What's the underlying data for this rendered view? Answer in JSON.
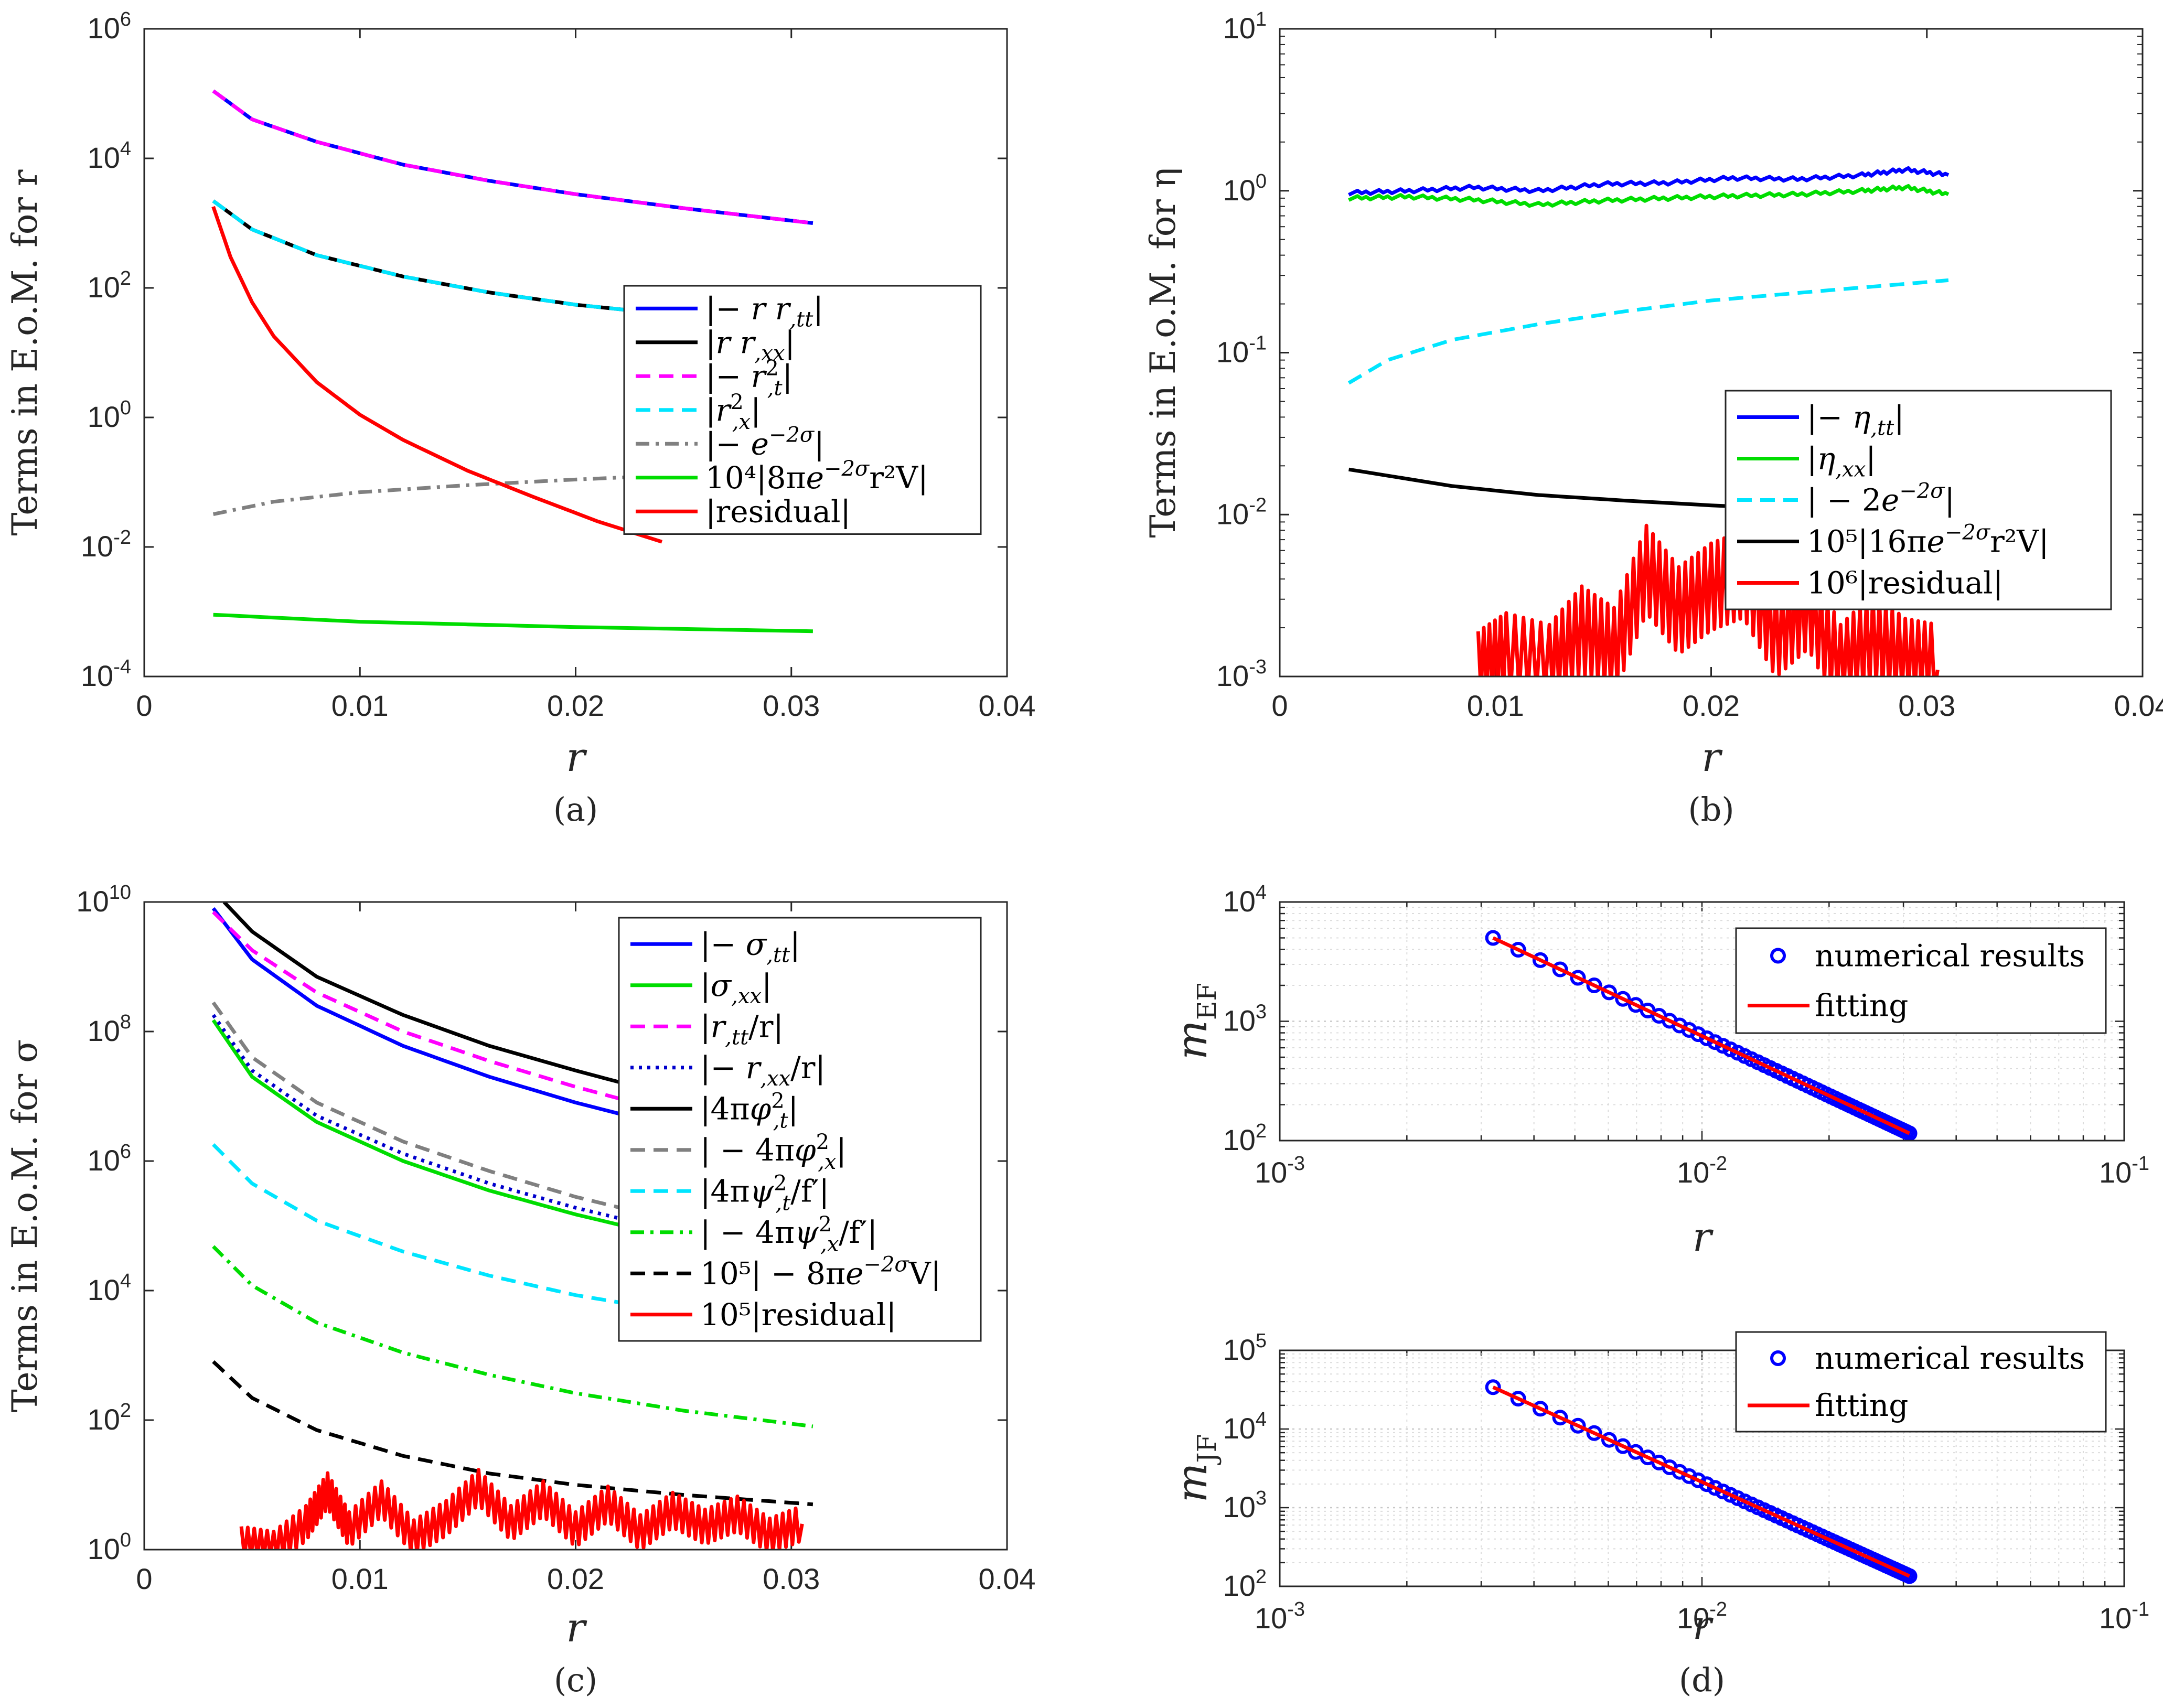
{
  "chart_data": [
    {
      "id": "a",
      "type": "line",
      "caption": "(a)",
      "ylabel": "Terms in E.o.M. for r",
      "xlabel": "r",
      "yscale": "log",
      "xlim": [
        0,
        0.04
      ],
      "ylim": [
        0.0001,
        1000000
      ],
      "xticks": [
        "0",
        "0.01",
        "0.02",
        "0.03",
        "0.04"
      ],
      "yticks": [
        {
          "base": "10",
          "exp": "-4"
        },
        {
          "base": "10",
          "exp": "-2"
        },
        {
          "base": "10",
          "exp": "0"
        },
        {
          "base": "10",
          "exp": "2"
        },
        {
          "base": "10",
          "exp": "4"
        },
        {
          "base": "10",
          "exp": "6"
        }
      ],
      "series": [
        {
          "name": "|−rr,tt|",
          "color": "#0000ff",
          "dash": "solid",
          "x": [
            0.0032,
            0.005,
            0.008,
            0.012,
            0.016,
            0.02,
            0.025,
            0.031
          ],
          "y": [
            110000,
            40000,
            18000,
            8000,
            4500,
            2800,
            1700,
            1000
          ]
        },
        {
          "name": "|rr,xx|",
          "color": "#000000",
          "dash": "solid",
          "x": [
            0.0032,
            0.005,
            0.008,
            0.012,
            0.016,
            0.02,
            0.025,
            0.031
          ],
          "y": [
            2200,
            800,
            320,
            150,
            85,
            55,
            37,
            25
          ]
        },
        {
          "name": "|−r,t²|",
          "color": "#ff00ff",
          "dash": "dash",
          "x": [
            0.0032,
            0.005,
            0.008,
            0.012,
            0.016,
            0.02,
            0.025,
            0.031
          ],
          "y": [
            110000,
            40000,
            18000,
            8000,
            4500,
            2800,
            1700,
            1000
          ]
        },
        {
          "name": "|r,x²|",
          "color": "#00e5ff",
          "dash": "dash",
          "x": [
            0.0032,
            0.005,
            0.008,
            0.012,
            0.016,
            0.02,
            0.025,
            0.031
          ],
          "y": [
            2200,
            800,
            320,
            150,
            85,
            55,
            37,
            25
          ]
        },
        {
          "name": "|−e^(−2σ)|",
          "color": "#808080",
          "dash": "dashdot",
          "x": [
            0.0032,
            0.006,
            0.01,
            0.015,
            0.02,
            0.025,
            0.031
          ],
          "y": [
            0.032,
            0.05,
            0.07,
            0.09,
            0.11,
            0.13,
            0.15
          ]
        },
        {
          "name": "10⁴|8πe^(−2σ)r²V|",
          "color": "#00dd00",
          "dash": "solid",
          "x": [
            0.0032,
            0.01,
            0.02,
            0.031
          ],
          "y": [
            0.0009,
            0.0007,
            0.00058,
            0.0005
          ]
        },
        {
          "name": "|residual|",
          "color": "#ff0000",
          "dash": "solid",
          "x": [
            0.0032,
            0.004,
            0.005,
            0.006,
            0.008,
            0.01,
            0.012,
            0.015,
            0.018,
            0.021,
            0.024
          ],
          "y": [
            1800,
            300,
            60,
            18,
            3.5,
            1.1,
            0.45,
            0.15,
            0.06,
            0.025,
            0.012
          ]
        }
      ],
      "legend": {
        "loc": "right",
        "entries": [
          {
            "pre": "|",
            "math": "− r r",
            "sub": ",tt",
            "sup": "",
            "post": "|"
          },
          {
            "pre": "|",
            "math": "r r",
            "sub": ",xx",
            "sup": "",
            "post": "|"
          },
          {
            "pre": "|",
            "math": "− r",
            "sub": ",t",
            "sup": "2",
            "post": "|"
          },
          {
            "pre": "|",
            "math": "r",
            "sub": ",x",
            "sup": "2",
            "post": "|"
          },
          {
            "pre": "|",
            "math": "− e",
            "sub": "",
            "sup": "−2σ",
            "post": "|"
          },
          {
            "pre": "10⁴|8π",
            "math": "e",
            "sub": "",
            "sup": "−2σ",
            "post": "r²V|"
          },
          {
            "pre": "|residual|",
            "math": "",
            "sub": "",
            "sup": "",
            "post": ""
          }
        ]
      }
    },
    {
      "id": "b",
      "type": "line",
      "caption": "(b)",
      "ylabel": "Terms in E.o.M. for η",
      "xlabel": "r",
      "yscale": "log",
      "xlim": [
        0,
        0.04
      ],
      "ylim": [
        0.001,
        10
      ],
      "xticks": [
        "0",
        "0.01",
        "0.02",
        "0.03",
        "0.04"
      ],
      "yticks": [
        {
          "base": "10",
          "exp": "-3"
        },
        {
          "base": "10",
          "exp": "-2"
        },
        {
          "base": "10",
          "exp": "-1"
        },
        {
          "base": "10",
          "exp": "0"
        },
        {
          "base": "10",
          "exp": "1"
        }
      ],
      "series": [
        {
          "name": "|−η,tt|",
          "color": "#0000ff",
          "dash": "solid",
          "x": [
            0.0032,
            0.006,
            0.009,
            0.012,
            0.015,
            0.018,
            0.021,
            0.024,
            0.027,
            0.029,
            0.031
          ],
          "y": [
            0.97,
            1.0,
            1.05,
            1.0,
            1.1,
            1.12,
            1.2,
            1.18,
            1.25,
            1.35,
            1.25
          ]
        },
        {
          "name": "|η,xx|",
          "color": "#00dd00",
          "dash": "solid",
          "x": [
            0.0032,
            0.006,
            0.009,
            0.012,
            0.015,
            0.018,
            0.021,
            0.024,
            0.027,
            0.029,
            0.031
          ],
          "y": [
            0.9,
            0.92,
            0.88,
            0.82,
            0.87,
            0.9,
            0.93,
            0.95,
            1.0,
            1.05,
            0.95
          ]
        },
        {
          "name": "|−2e^(−2σ)|",
          "color": "#00e5ff",
          "dash": "dash",
          "x": [
            0.0032,
            0.005,
            0.008,
            0.012,
            0.016,
            0.02,
            0.025,
            0.031
          ],
          "y": [
            0.065,
            0.09,
            0.12,
            0.15,
            0.18,
            0.21,
            0.24,
            0.28
          ]
        },
        {
          "name": "10⁵|16πe^(−2σ)r²V|",
          "color": "#000000",
          "dash": "solid",
          "x": [
            0.0032,
            0.008,
            0.012,
            0.016,
            0.02,
            0.025,
            0.031
          ],
          "y": [
            0.019,
            0.015,
            0.0132,
            0.0122,
            0.0114,
            0.0106,
            0.01
          ]
        },
        {
          "name": "10⁶|residual|",
          "color": "#ff0000",
          "dash": "solid",
          "x": [
            0.0092,
            0.0105,
            0.0125,
            0.014,
            0.0155,
            0.017,
            0.0185,
            0.02,
            0.0215,
            0.023,
            0.0245,
            0.026,
            0.0275,
            0.029,
            0.0305
          ],
          "y": [
            0.001,
            0.0013,
            0.0011,
            0.0019,
            0.0014,
            0.0045,
            0.0025,
            0.0035,
            0.0042,
            0.0018,
            0.0027,
            0.0011,
            0.0017,
            0.0012,
            0.0011
          ]
        }
      ],
      "legend": {
        "loc": "right",
        "entries": [
          {
            "pre": "|",
            "math": "− η",
            "sub": ",tt",
            "sup": "",
            "post": "|"
          },
          {
            "pre": "|",
            "math": "η",
            "sub": ",xx",
            "sup": "",
            "post": "|"
          },
          {
            "pre": "| − 2",
            "math": "e",
            "sub": "",
            "sup": "−2σ",
            "post": "|"
          },
          {
            "pre": "10⁵|16π",
            "math": "e",
            "sub": "",
            "sup": "−2σ",
            "post": "r²V|"
          },
          {
            "pre": "10⁶|residual|",
            "math": "",
            "sub": "",
            "sup": "",
            "post": ""
          }
        ]
      }
    },
    {
      "id": "c",
      "type": "line",
      "caption": "(c)",
      "ylabel": "Terms in E.o.M. for σ",
      "xlabel": "r",
      "yscale": "log",
      "xlim": [
        0,
        0.04
      ],
      "ylim": [
        1,
        10000000000
      ],
      "xticks": [
        "0",
        "0.01",
        "0.02",
        "0.03",
        "0.04"
      ],
      "yticks": [
        {
          "base": "10",
          "exp": "0"
        },
        {
          "base": "10",
          "exp": "2"
        },
        {
          "base": "10",
          "exp": "4"
        },
        {
          "base": "10",
          "exp": "6"
        },
        {
          "base": "10",
          "exp": "8"
        },
        {
          "base": "10",
          "exp": "10"
        }
      ],
      "series": [
        {
          "name": "|−σ,tt|",
          "color": "#0000ff",
          "dash": "solid",
          "x": [
            0.0032,
            0.005,
            0.008,
            0.012,
            0.016,
            0.02,
            0.025,
            0.031
          ],
          "y": [
            8000000000,
            1300000000,
            250000000,
            60000000,
            20000000,
            8000000,
            3000000,
            1100000
          ]
        },
        {
          "name": "|σ,xx|",
          "color": "#00dd00",
          "dash": "solid",
          "x": [
            0.0032,
            0.005,
            0.008,
            0.012,
            0.016,
            0.02,
            0.025,
            0.031
          ],
          "y": [
            150000000,
            20000000,
            4000000,
            1000000,
            350000,
            150000,
            60000,
            25000
          ]
        },
        {
          "name": "|r,tt/r|",
          "color": "#ff00ff",
          "dash": "dash",
          "x": [
            0.0032,
            0.005,
            0.008,
            0.012,
            0.016,
            0.02,
            0.025,
            0.031
          ],
          "y": [
            7000000000,
            1800000000,
            400000000,
            100000000,
            35000000,
            14000000,
            5000000,
            2000000
          ]
        },
        {
          "name": "|−r,xx/r|",
          "color": "#0000cc",
          "dash": "dot",
          "x": [
            0.0032,
            0.005,
            0.008,
            0.012,
            0.016,
            0.02,
            0.025,
            0.031
          ],
          "y": [
            180000000,
            25000000,
            5000000,
            1300000,
            450000,
            190000,
            75000,
            30000
          ]
        },
        {
          "name": "|4πφ,t²|",
          "color": "#000000",
          "dash": "solid",
          "x": [
            0.0037,
            0.005,
            0.008,
            0.012,
            0.016,
            0.02,
            0.025,
            0.031
          ],
          "y": [
            10000000000,
            3500000000,
            700000000,
            180000000,
            60000000,
            25000000,
            9000000,
            3500000
          ]
        },
        {
          "name": "|−4πφ,x²|",
          "color": "#808080",
          "dash": "dash",
          "x": [
            0.0032,
            0.005,
            0.008,
            0.012,
            0.016,
            0.02,
            0.025,
            0.031
          ],
          "y": [
            280000000,
            40000000,
            8000000,
            2000000,
            700000,
            280000,
            110000,
            45000
          ]
        },
        {
          "name": "|4πψ,t²/f'|",
          "color": "#00e5ff",
          "dash": "dash",
          "x": [
            0.0032,
            0.005,
            0.008,
            0.012,
            0.016,
            0.02,
            0.025,
            0.031
          ],
          "y": [
            1800000,
            450000,
            120000,
            40000,
            17000,
            8500,
            4500,
            2500
          ]
        },
        {
          "name": "|−4πψ,x²/f'|",
          "color": "#00dd00",
          "dash": "dashdot",
          "x": [
            0.0032,
            0.005,
            0.008,
            0.012,
            0.016,
            0.02,
            0.025,
            0.031
          ],
          "y": [
            48000,
            12000,
            3200,
            1100,
            500,
            260,
            140,
            80
          ]
        },
        {
          "name": "10⁵|−8πe^(−2σ)V|",
          "color": "#000000",
          "dash": "dash",
          "x": [
            0.0032,
            0.005,
            0.008,
            0.012,
            0.016,
            0.02,
            0.025,
            0.031
          ],
          "y": [
            800,
            220,
            70,
            28,
            15,
            10,
            7,
            5
          ]
        },
        {
          "name": "10⁵|residual|",
          "color": "#ff0000",
          "dash": "solid",
          "x": [
            0.0045,
            0.006,
            0.0075,
            0.0085,
            0.0095,
            0.011,
            0.0125,
            0.014,
            0.0155,
            0.017,
            0.0185,
            0.02,
            0.0215,
            0.023,
            0.0245,
            0.026,
            0.0275,
            0.029,
            0.0305
          ],
          "y": [
            1.2,
            1.0,
            2.5,
            8,
            2,
            6,
            1.5,
            3,
            9,
            2.5,
            6,
            2,
            5,
            1.8,
            4,
            2.2,
            3.5,
            1.6,
            2.5
          ]
        }
      ],
      "legend": {
        "loc": "right",
        "entries": [
          {
            "pre": "|",
            "math": "− σ",
            "sub": ",tt",
            "sup": "",
            "post": "|"
          },
          {
            "pre": "|",
            "math": "σ",
            "sub": ",xx",
            "sup": "",
            "post": "|"
          },
          {
            "pre": "|",
            "math": "r",
            "sub": ",tt",
            "sup": "",
            "post": "/r|"
          },
          {
            "pre": "|",
            "math": "− r",
            "sub": ",xx",
            "sup": "",
            "post": "/r|"
          },
          {
            "pre": "|4π",
            "math": "φ",
            "sub": ",t",
            "sup": "2",
            "post": "|"
          },
          {
            "pre": "| − 4π",
            "math": "φ",
            "sub": ",x",
            "sup": "2",
            "post": "|"
          },
          {
            "pre": "|4π",
            "math": "ψ",
            "sub": ",t",
            "sup": "2",
            "post": "/f′|"
          },
          {
            "pre": "| − 4π",
            "math": "ψ",
            "sub": ",x",
            "sup": "2",
            "post": "/f′|"
          },
          {
            "pre": "10⁵| − 8π",
            "math": "e",
            "sub": "",
            "sup": "−2σ",
            "post": "V|"
          },
          {
            "pre": "10⁵|residual|",
            "math": "",
            "sub": "",
            "sup": "",
            "post": ""
          }
        ]
      }
    },
    {
      "id": "d1",
      "type": "scatter",
      "caption": "",
      "ylabel": "m",
      "ylabel_sub": "EF",
      "xlabel": "r",
      "xscale": "log",
      "yscale": "log",
      "xlim": [
        0.001,
        0.1
      ],
      "ylim": [
        100,
        10000
      ],
      "grid": true,
      "xticks": [
        {
          "base": "10",
          "exp": "-3"
        },
        {
          "base": "10",
          "exp": "-2"
        },
        {
          "base": "10",
          "exp": "-1"
        }
      ],
      "yticks": [
        {
          "base": "10",
          "exp": "2"
        },
        {
          "base": "10",
          "exp": "3"
        },
        {
          "base": "10",
          "exp": "4"
        }
      ],
      "points_x_range": [
        0.0032,
        0.031
      ],
      "points_y_range": [
        5000,
        115
      ],
      "fit": {
        "x": [
          0.0032,
          0.031
        ],
        "y": [
          5000,
          115
        ]
      },
      "legend": {
        "loc": "top-right",
        "entries": [
          "numerical results",
          "fitting"
        ]
      },
      "colors": {
        "points": "#0000ff",
        "fit": "#ff0000"
      }
    },
    {
      "id": "d2",
      "type": "scatter",
      "caption": "(d)",
      "ylabel": "m",
      "ylabel_sub": "JF",
      "xlabel": "r",
      "xscale": "log",
      "yscale": "log",
      "xlim": [
        0.001,
        0.1
      ],
      "ylim": [
        100,
        100000
      ],
      "grid": true,
      "xticks": [
        {
          "base": "10",
          "exp": "-3"
        },
        {
          "base": "10",
          "exp": "-2"
        },
        {
          "base": "10",
          "exp": "-1"
        }
      ],
      "yticks": [
        {
          "base": "10",
          "exp": "2"
        },
        {
          "base": "10",
          "exp": "3"
        },
        {
          "base": "10",
          "exp": "4"
        },
        {
          "base": "10",
          "exp": "5"
        }
      ],
      "points_x_range": [
        0.0032,
        0.031
      ],
      "points_y_range": [
        34000,
        135
      ],
      "fit": {
        "x": [
          0.0032,
          0.031
        ],
        "y": [
          34000,
          135
        ]
      },
      "legend": {
        "loc": "top-right",
        "entries": [
          "numerical results",
          "fitting"
        ]
      },
      "colors": {
        "points": "#0000ff",
        "fit": "#ff0000"
      }
    }
  ]
}
